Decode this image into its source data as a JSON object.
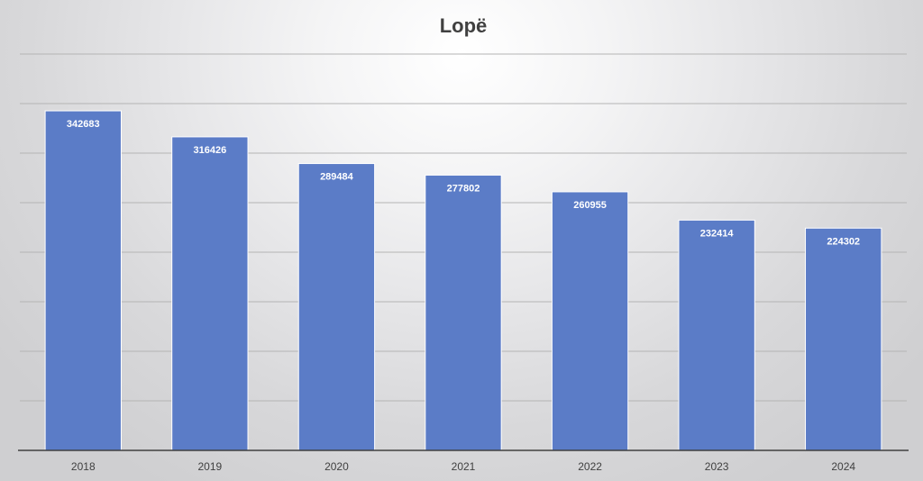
{
  "chart_data": {
    "type": "bar",
    "title": "Lopë",
    "categories": [
      "2018",
      "2019",
      "2020",
      "2021",
      "2022",
      "2023",
      "2024"
    ],
    "series": [
      {
        "values": [
          342683,
          316426,
          289484,
          277802,
          260955,
          232414,
          224302
        ]
      }
    ],
    "ylim": [
      0,
      400000
    ],
    "grid": true,
    "legend": "none",
    "colors": {
      "bar": "#5b7cc7",
      "bar_edge": "#ffffff",
      "grid": "#b4b4b4",
      "axis": "#404040"
    }
  }
}
